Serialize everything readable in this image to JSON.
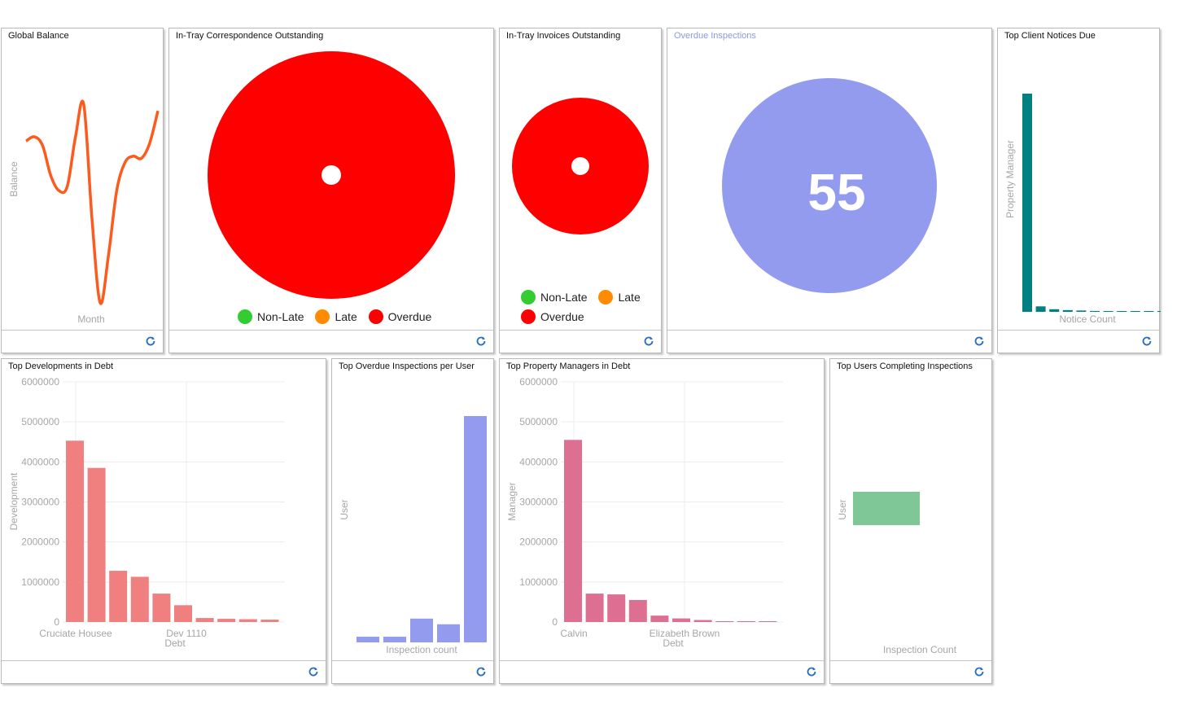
{
  "panels": {
    "global_balance": {
      "title": "Global Balance",
      "chart_data": {
        "type": "line",
        "xlabel": "Month",
        "ylabel": "Balance",
        "color": "#fd5a1e",
        "series": [
          {
            "values": [
              0.78,
              0.8,
              0.76,
              0.62,
              0.55,
              0.57,
              0.8,
              0.95,
              0.42,
              0.03,
              0.25,
              0.55,
              0.68,
              0.71,
              0.7,
              0.77,
              0.92
            ]
          }
        ],
        "ylim": [
          0,
          1
        ]
      }
    },
    "in_tray_correspondence": {
      "title": "In-Tray Correspondence Outstanding",
      "chart_data": {
        "type": "pie",
        "categories": [
          "Non-Late",
          "Late",
          "Overdue"
        ],
        "values": [
          0,
          0,
          1
        ],
        "colors": [
          "#33cc33",
          "#ff8c00",
          "#ff0000"
        ]
      },
      "legend": [
        "Non-Late",
        "Late",
        "Overdue"
      ]
    },
    "in_tray_invoices": {
      "title": "In-Tray Invoices Outstanding",
      "chart_data": {
        "type": "pie",
        "categories": [
          "Non-Late",
          "Late",
          "Overdue"
        ],
        "values": [
          0,
          0,
          1
        ],
        "colors": [
          "#33cc33",
          "#ff8c00",
          "#ff0000"
        ]
      },
      "legend": [
        "Non-Late",
        "Late",
        "Overdue"
      ]
    },
    "overdue_inspections": {
      "title": "Overdue Inspections",
      "value": "55",
      "color": "#939bef"
    },
    "top_client_notices": {
      "title": "Top Client Notices Due",
      "chart_data": {
        "type": "bar",
        "xlabel": "Notice Count",
        "ylabel": "Property Manager",
        "color": "#008080",
        "values": [
          100,
          2.5,
          1.2,
          0.8,
          0.6,
          0.4,
          0.3,
          0.25,
          0.2,
          0.18,
          0.15,
          0.12,
          0.1
        ],
        "ylim": [
          0,
          100
        ]
      }
    },
    "top_developments_debt": {
      "title": "Top Developments in Debt",
      "chart_data": {
        "type": "bar",
        "xlabel": "Debt",
        "ylabel": "Development",
        "color": "#f08080",
        "tick_labels_x": [
          "Cruciate Housee",
          "Dev 1110"
        ],
        "yticks": [
          "6000000",
          "5000000",
          "4000000",
          "3000000",
          "2000000",
          "1000000",
          "0"
        ],
        "values": [
          4530000,
          3850000,
          1280000,
          1130000,
          710000,
          420000,
          100000,
          80000,
          70000,
          60000
        ],
        "ylim": [
          0,
          6000000
        ]
      }
    },
    "top_overdue_per_user": {
      "title": "Top Overdue Inspections per User",
      "chart_data": {
        "type": "bar",
        "xlabel": "Inspection count",
        "ylabel": "User",
        "color": "#939bef",
        "values": [
          2.5,
          2.5,
          10.5,
          8,
          100
        ],
        "ylim": [
          0,
          100
        ]
      }
    },
    "top_property_managers_debt": {
      "title": "Top Property Managers in Debt",
      "chart_data": {
        "type": "bar",
        "xlabel": "Debt",
        "ylabel": "Manager",
        "color": "#dd6f92",
        "tick_labels_x": [
          "Calvin",
          "Elizabeth Brown"
        ],
        "yticks": [
          "6000000",
          "5000000",
          "4000000",
          "3000000",
          "2000000",
          "1000000",
          "0"
        ],
        "values": [
          4550000,
          710000,
          690000,
          550000,
          160000,
          90000,
          50000,
          20000,
          10000,
          5000
        ],
        "ylim": [
          0,
          6000000
        ]
      }
    },
    "top_users_inspections": {
      "title": "Top Users Completing Inspections",
      "chart_data": {
        "type": "bar",
        "xlabel": "Inspection Count",
        "ylabel": "User",
        "color": "#7fc796",
        "values": [
          1
        ],
        "ylim": [
          0,
          1
        ]
      }
    }
  },
  "icons": {
    "refresh": "refresh-icon"
  }
}
